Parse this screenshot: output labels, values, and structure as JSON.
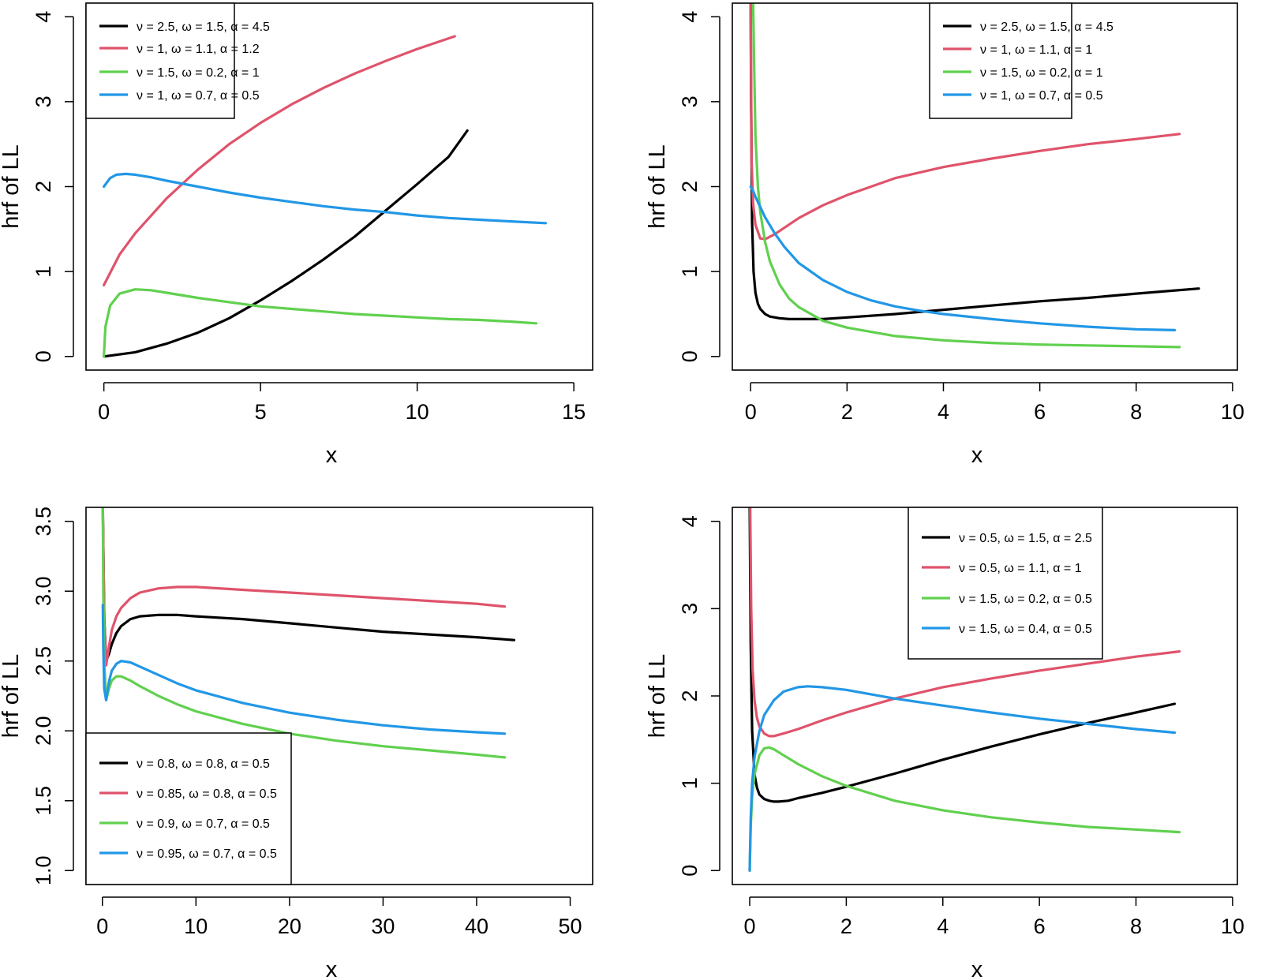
{
  "figure": {
    "ylabel": "hrf of LL",
    "xlabel": "x"
  },
  "colors": {
    "black": "#000000",
    "red": "#DF536B",
    "green": "#61D04F",
    "blue": "#2297E6"
  },
  "chart_data": [
    {
      "type": "line",
      "xlabel": "x",
      "ylabel": "hrf of LL",
      "xlim": [
        0,
        15
      ],
      "ylim": [
        0,
        4
      ],
      "xticks": [
        0,
        5,
        10,
        15
      ],
      "yticks": [
        0,
        1,
        2,
        3,
        4
      ],
      "legend_position": "top-left",
      "series": [
        {
          "name": "ν = 2.5, ω = 1.5, α = 4.5",
          "color": "#000000",
          "x": [
            0,
            1,
            2,
            3,
            4,
            5,
            6,
            7,
            8,
            9,
            10,
            11,
            11.6
          ],
          "y": [
            0,
            0.05,
            0.15,
            0.28,
            0.45,
            0.66,
            0.89,
            1.14,
            1.41,
            1.72,
            2.03,
            2.35,
            2.66
          ]
        },
        {
          "name": "ν = 1, ω = 1.1, α = 1.2",
          "color": "#DF536B",
          "x": [
            0,
            0.5,
            1,
            2,
            3,
            4,
            5,
            6,
            7,
            8,
            9,
            10,
            11.2
          ],
          "y": [
            0.84,
            1.2,
            1.45,
            1.86,
            2.2,
            2.5,
            2.75,
            2.97,
            3.16,
            3.33,
            3.48,
            3.62,
            3.77
          ]
        },
        {
          "name": "ν = 1.5, ω = 0.2, α = 1",
          "color": "#61D04F",
          "x": [
            0,
            0.05,
            0.2,
            0.5,
            1,
            1.5,
            2,
            3,
            4,
            5,
            6,
            7,
            8,
            9,
            10,
            11,
            12,
            13,
            13.8
          ],
          "y": [
            0,
            0.35,
            0.6,
            0.74,
            0.79,
            0.78,
            0.75,
            0.69,
            0.64,
            0.59,
            0.56,
            0.53,
            0.5,
            0.48,
            0.46,
            0.44,
            0.43,
            0.41,
            0.39
          ]
        },
        {
          "name": "ν = 1, ω = 0.7, α = 0.5",
          "color": "#2297E6",
          "x": [
            0,
            0.2,
            0.4,
            0.7,
            1,
            1.5,
            2,
            3,
            4,
            5,
            6,
            7,
            8,
            9,
            10,
            11,
            12,
            13,
            14.1
          ],
          "y": [
            2,
            2.1,
            2.14,
            2.15,
            2.14,
            2.11,
            2.07,
            2,
            1.93,
            1.87,
            1.82,
            1.77,
            1.73,
            1.7,
            1.66,
            1.63,
            1.61,
            1.59,
            1.57
          ]
        }
      ]
    },
    {
      "type": "line",
      "xlabel": "x",
      "ylabel": "hrf of LL",
      "xlim": [
        0,
        10
      ],
      "ylim": [
        0,
        4
      ],
      "xticks": [
        0,
        2,
        4,
        6,
        8,
        10
      ],
      "yticks": [
        0,
        1,
        2,
        3,
        4
      ],
      "legend_position": "top-center",
      "series": [
        {
          "name": "ν = 2.5, ω = 1.5, α = 4.5",
          "color": "#000000",
          "x": [
            0,
            0.01,
            0.03,
            0.06,
            0.1,
            0.15,
            0.2,
            0.3,
            0.4,
            0.6,
            0.8,
            1,
            1.5,
            2,
            3,
            4,
            5,
            6,
            7,
            8,
            9.3
          ],
          "y": [
            4.2,
            3.0,
            1.6,
            1.0,
            0.75,
            0.62,
            0.56,
            0.5,
            0.47,
            0.45,
            0.44,
            0.44,
            0.44,
            0.46,
            0.5,
            0.55,
            0.6,
            0.65,
            0.69,
            0.74,
            0.8
          ]
        },
        {
          "name": "ν = 1, ω = 1.1, α = 1",
          "color": "#DF536B",
          "x": [
            0,
            0.02,
            0.05,
            0.1,
            0.2,
            0.3,
            0.5,
            1,
            1.5,
            2,
            3,
            4,
            5,
            6,
            7,
            8,
            8.9
          ],
          "y": [
            4.2,
            2.3,
            1.8,
            1.55,
            1.39,
            1.38,
            1.44,
            1.63,
            1.78,
            1.9,
            2.1,
            2.23,
            2.33,
            2.42,
            2.5,
            2.56,
            2.62
          ]
        },
        {
          "name": "ν = 1.5, ω = 0.2, α = 1",
          "color": "#61D04F",
          "x": [
            0.05,
            0.07,
            0.1,
            0.15,
            0.2,
            0.3,
            0.4,
            0.6,
            0.8,
            1,
            1.5,
            2,
            3,
            4,
            5,
            6,
            7,
            8,
            8.9
          ],
          "y": [
            4.2,
            3.5,
            2.6,
            2.0,
            1.7,
            1.35,
            1.12,
            0.85,
            0.68,
            0.58,
            0.42,
            0.34,
            0.24,
            0.19,
            0.16,
            0.14,
            0.13,
            0.12,
            0.11
          ]
        },
        {
          "name": "ν = 1, ω = 0.7, α = 0.5",
          "color": "#2297E6",
          "x": [
            0,
            0.05,
            0.1,
            0.2,
            0.3,
            0.5,
            0.7,
            1,
            1.5,
            2,
            2.5,
            3,
            3.5,
            4,
            5,
            6,
            7,
            8,
            8.8
          ],
          "y": [
            2.0,
            1.95,
            1.88,
            1.76,
            1.64,
            1.45,
            1.29,
            1.1,
            0.9,
            0.76,
            0.66,
            0.59,
            0.54,
            0.5,
            0.44,
            0.39,
            0.35,
            0.32,
            0.31
          ]
        }
      ]
    },
    {
      "type": "line",
      "xlabel": "x",
      "ylabel": "hrf of LL",
      "xlim": [
        0,
        50
      ],
      "ylim": [
        1,
        3.5
      ],
      "xticks": [
        0,
        10,
        20,
        30,
        40,
        50
      ],
      "yticks": [
        1.0,
        1.5,
        2.0,
        2.5,
        3.0,
        3.5
      ],
      "ytick_labels": [
        "1.0",
        "1.5",
        "2.0",
        "2.5",
        "3.0",
        "3.5"
      ],
      "legend_position": "bottom-left",
      "series": [
        {
          "name": "ν = 0.8, ω = 0.8, α = 0.5",
          "color": "#000000",
          "x": [
            0.05,
            0.2,
            0.4,
            0.7,
            1,
            1.5,
            2,
            3,
            4,
            6,
            8,
            10,
            15,
            20,
            25,
            30,
            35,
            40,
            44
          ],
          "y": [
            3.6,
            2.8,
            2.5,
            2.55,
            2.62,
            2.7,
            2.75,
            2.8,
            2.82,
            2.83,
            2.83,
            2.82,
            2.8,
            2.77,
            2.74,
            2.71,
            2.69,
            2.67,
            2.65
          ]
        },
        {
          "name": "ν = 0.85, ω = 0.8, α = 0.5",
          "color": "#DF536B",
          "x": [
            0.05,
            0.2,
            0.4,
            0.7,
            1,
            1.5,
            2,
            3,
            4,
            6,
            8,
            10,
            15,
            20,
            25,
            30,
            35,
            40,
            43
          ],
          "y": [
            3.6,
            2.8,
            2.47,
            2.6,
            2.72,
            2.82,
            2.88,
            2.95,
            2.99,
            3.02,
            3.03,
            3.03,
            3.01,
            2.99,
            2.97,
            2.95,
            2.93,
            2.91,
            2.89
          ]
        },
        {
          "name": "ν = 0.9, ω = 0.7, α = 0.5",
          "color": "#61D04F",
          "x": [
            0.05,
            0.1,
            0.2,
            0.4,
            0.7,
            1,
            1.5,
            2,
            3,
            4,
            6,
            8,
            10,
            15,
            20,
            25,
            30,
            35,
            40,
            43
          ],
          "y": [
            3.6,
            3.0,
            2.5,
            2.22,
            2.3,
            2.36,
            2.39,
            2.39,
            2.36,
            2.32,
            2.25,
            2.19,
            2.14,
            2.05,
            1.98,
            1.93,
            1.89,
            1.86,
            1.83,
            1.81
          ]
        },
        {
          "name": "ν = 0.95, ω = 0.7, α = 0.5",
          "color": "#2297E6",
          "x": [
            0.05,
            0.1,
            0.2,
            0.4,
            0.7,
            1,
            1.5,
            2,
            3,
            4,
            6,
            8,
            10,
            15,
            20,
            25,
            30,
            35,
            40,
            43
          ],
          "y": [
            2.9,
            2.6,
            2.3,
            2.22,
            2.35,
            2.43,
            2.48,
            2.5,
            2.49,
            2.46,
            2.4,
            2.34,
            2.29,
            2.2,
            2.13,
            2.08,
            2.04,
            2.01,
            1.99,
            1.98
          ]
        }
      ]
    },
    {
      "type": "line",
      "xlabel": "x",
      "ylabel": "hrf of LL",
      "xlim": [
        0,
        10
      ],
      "ylim": [
        0,
        4
      ],
      "xticks": [
        0,
        2,
        4,
        6,
        8,
        10
      ],
      "yticks": [
        0,
        1,
        2,
        3,
        4
      ],
      "legend_position": "top-right",
      "series": [
        {
          "name": "ν = 0.5, ω = 1.5, α = 2.5",
          "color": "#000000",
          "x": [
            0,
            0.02,
            0.05,
            0.1,
            0.15,
            0.2,
            0.3,
            0.4,
            0.5,
            0.6,
            0.8,
            1,
            1.5,
            2,
            3,
            4,
            5,
            6,
            7,
            8,
            8.8
          ],
          "y": [
            4.2,
            2.6,
            1.6,
            1.1,
            0.95,
            0.87,
            0.82,
            0.8,
            0.79,
            0.79,
            0.8,
            0.83,
            0.89,
            0.96,
            1.11,
            1.27,
            1.42,
            1.56,
            1.69,
            1.81,
            1.91
          ]
        },
        {
          "name": "ν = 0.5, ω = 1.1, α = 1",
          "color": "#DF536B",
          "x": [
            0.01,
            0.03,
            0.06,
            0.1,
            0.15,
            0.2,
            0.3,
            0.4,
            0.5,
            0.7,
            1,
            1.5,
            2,
            3,
            4,
            5,
            6,
            7,
            8,
            8.9
          ],
          "y": [
            4.2,
            3.0,
            2.3,
            1.95,
            1.75,
            1.65,
            1.57,
            1.54,
            1.54,
            1.57,
            1.62,
            1.72,
            1.81,
            1.97,
            2.1,
            2.2,
            2.29,
            2.37,
            2.45,
            2.51
          ]
        },
        {
          "name": "ν = 1.5, ω = 0.2, α = 0.5",
          "color": "#61D04F",
          "x": [
            0,
            0.02,
            0.05,
            0.1,
            0.2,
            0.3,
            0.4,
            0.5,
            0.7,
            1,
            1.5,
            2,
            3,
            4,
            5,
            6,
            7,
            8,
            8.9
          ],
          "y": [
            0,
            0.5,
            0.85,
            1.1,
            1.32,
            1.4,
            1.41,
            1.39,
            1.32,
            1.22,
            1.08,
            0.97,
            0.8,
            0.69,
            0.61,
            0.55,
            0.5,
            0.47,
            0.44
          ]
        },
        {
          "name": "ν = 1.5, ω = 0.4, α = 0.5",
          "color": "#2297E6",
          "x": [
            0,
            0.02,
            0.05,
            0.1,
            0.2,
            0.3,
            0.5,
            0.7,
            1,
            1.2,
            1.5,
            2,
            3,
            4,
            5,
            6,
            7,
            8,
            8.8
          ],
          "y": [
            0,
            0.6,
            1.0,
            1.3,
            1.6,
            1.78,
            1.95,
            2.05,
            2.1,
            2.11,
            2.1,
            2.07,
            1.97,
            1.89,
            1.81,
            1.74,
            1.68,
            1.62,
            1.58
          ]
        }
      ]
    }
  ]
}
